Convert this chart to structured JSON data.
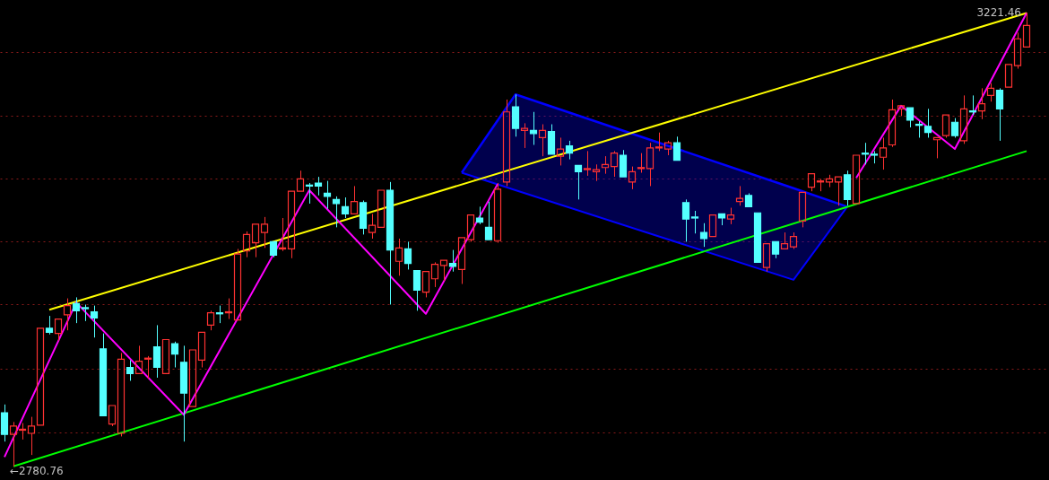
{
  "chart_data": {
    "type": "candlestick",
    "categories": [
      null,
      null,
      null,
      null,
      null,
      null,
      null,
      null,
      null,
      null,
      null,
      null,
      null,
      null,
      null,
      null,
      null,
      null,
      null,
      null,
      null,
      null,
      null,
      null,
      null,
      null,
      null,
      null,
      null,
      null,
      null,
      null,
      null,
      null,
      null,
      null,
      null,
      null,
      null,
      null,
      null,
      null,
      null,
      null,
      null,
      null,
      null,
      null,
      null,
      null,
      null,
      null,
      null,
      null,
      null,
      null,
      null,
      null,
      null,
      null,
      null,
      null,
      null,
      null,
      null,
      null,
      null,
      null,
      null,
      null,
      null,
      null,
      null,
      null,
      null,
      null,
      null,
      null,
      null,
      null,
      null,
      null,
      null,
      null,
      null,
      null,
      null,
      null,
      null,
      null,
      null,
      null,
      null,
      null,
      null,
      null,
      null,
      null,
      null,
      null,
      null,
      null,
      null,
      null,
      null,
      null,
      null,
      null,
      null,
      null,
      null,
      null,
      null,
      null,
      null
    ],
    "ohlc": [
      [
        2833,
        2841,
        2805,
        2812
      ],
      [
        2812,
        2824,
        2780.76,
        2820
      ],
      [
        2816,
        2823,
        2807,
        2817
      ],
      [
        2813,
        2829,
        2792,
        2820
      ],
      [
        2821,
        2915,
        2821,
        2915
      ],
      [
        2915,
        2927,
        2909,
        2911
      ],
      [
        2910,
        2925,
        2903,
        2924
      ],
      [
        2928,
        2944,
        2913,
        2937
      ],
      [
        2939,
        2945,
        2920,
        2932
      ],
      [
        2935,
        2938,
        2922,
        2934
      ],
      [
        2931,
        2937,
        2906,
        2925
      ],
      [
        2895,
        2910,
        2830,
        2830
      ],
      [
        2822,
        2841,
        2820,
        2840
      ],
      [
        2813,
        2891,
        2810,
        2885
      ],
      [
        2877,
        2884,
        2864,
        2871
      ],
      [
        2871,
        2898,
        2870,
        2883
      ],
      [
        2885,
        2888,
        2866,
        2886
      ],
      [
        2897,
        2918,
        2867,
        2877
      ],
      [
        2871,
        2905,
        2870,
        2904
      ],
      [
        2900,
        2902,
        2877,
        2890
      ],
      [
        2882,
        2898,
        2805,
        2852
      ],
      [
        2839,
        2894,
        2839,
        2894
      ],
      [
        2884,
        2911,
        2877,
        2911
      ],
      [
        2918,
        2932,
        2913,
        2930
      ],
      [
        2930,
        2937,
        2920,
        2929
      ],
      [
        2930,
        2944,
        2924,
        2931
      ],
      [
        2923,
        2992,
        2923,
        2987
      ],
      [
        2990,
        3009,
        2984,
        3006
      ],
      [
        2998,
        3017,
        2984,
        3016
      ],
      [
        3008,
        3023,
        2993,
        3016
      ],
      [
        2999,
        2999,
        2984,
        2986
      ],
      [
        2992,
        3022,
        2990,
        2993
      ],
      [
        2992,
        3049,
        2983,
        3048
      ],
      [
        3048,
        3068,
        3048,
        3060
      ],
      [
        3054,
        3056,
        3036,
        3053
      ],
      [
        3056,
        3062,
        3044,
        3053
      ],
      [
        3046,
        3058,
        3031,
        3043
      ],
      [
        3040,
        3043,
        3013,
        3036
      ],
      [
        3033,
        3042,
        3022,
        3026
      ],
      [
        3026,
        3053,
        3026,
        3038
      ],
      [
        3037,
        3039,
        3006,
        3012
      ],
      [
        3008,
        3026,
        3002,
        3015
      ],
      [
        3013,
        3050,
        3013,
        3049
      ],
      [
        3049,
        3057,
        2938,
        2991
      ],
      [
        2980,
        3002,
        2966,
        2993
      ],
      [
        2992,
        2999,
        2972,
        2978
      ],
      [
        2971,
        2972,
        2932,
        2952
      ],
      [
        2950,
        2970,
        2945,
        2970
      ],
      [
        2963,
        2979,
        2955,
        2977
      ],
      [
        2976,
        2981,
        2961,
        2981
      ],
      [
        2978,
        2991,
        2970,
        2975
      ],
      [
        2972,
        3003,
        2958,
        3003
      ],
      [
        3001,
        3025,
        2999,
        3025
      ],
      [
        3022,
        3033,
        3016,
        3018
      ],
      [
        3013,
        3038,
        3000,
        3001
      ],
      [
        3000,
        3056,
        2998,
        3050
      ],
      [
        3057,
        3137,
        3053,
        3125
      ],
      [
        3130,
        3142,
        3101,
        3109
      ],
      [
        3107,
        3114,
        3090,
        3109
      ],
      [
        3107,
        3125,
        3093,
        3104
      ],
      [
        3100,
        3113,
        3082,
        3107
      ],
      [
        3106,
        3113,
        3083,
        3084
      ],
      [
        3082,
        3100,
        3073,
        3089
      ],
      [
        3092,
        3097,
        3079,
        3085
      ],
      [
        3073,
        3073,
        3040,
        3067
      ],
      [
        3069,
        3087,
        3063,
        3070
      ],
      [
        3067,
        3074,
        3058,
        3069
      ],
      [
        3071,
        3082,
        3065,
        3074
      ],
      [
        3072,
        3087,
        3062,
        3085
      ],
      [
        3083,
        3088,
        3062,
        3062
      ],
      [
        3057,
        3072,
        3050,
        3067
      ],
      [
        3070,
        3085,
        3066,
        3071
      ],
      [
        3070,
        3095,
        3053,
        3090
      ],
      [
        3090,
        3105,
        3087,
        3091
      ],
      [
        3089,
        3097,
        3083,
        3095
      ],
      [
        3095,
        3101,
        3078,
        3078
      ],
      [
        3037,
        3040,
        2999,
        3021
      ],
      [
        3023,
        3029,
        3007,
        3022
      ],
      [
        3008,
        3017,
        2994,
        3002
      ],
      [
        3004,
        3026,
        3004,
        3025
      ],
      [
        3026,
        3026,
        3015,
        3022
      ],
      [
        3021,
        3032,
        3016,
        3025
      ],
      [
        3038,
        3053,
        3034,
        3041
      ],
      [
        3044,
        3046,
        3032,
        3033
      ],
      [
        3027,
        3027,
        2979,
        2979
      ],
      [
        2974,
        2997,
        2970,
        2997
      ],
      [
        2999,
        2999,
        2983,
        2987
      ],
      [
        2992,
        3008,
        2992,
        2997
      ],
      [
        2994,
        3008,
        2992,
        3004
      ],
      [
        3019,
        3047,
        3013,
        3047
      ],
      [
        3052,
        3066,
        3048,
        3065
      ],
      [
        3057,
        3060,
        3048,
        3058
      ],
      [
        3057,
        3064,
        3052,
        3060
      ],
      [
        3057,
        3063,
        3034,
        3062
      ],
      [
        3064,
        3068,
        3034,
        3040
      ],
      [
        3036,
        3084,
        3036,
        3083
      ],
      [
        3085,
        3095,
        3074,
        3084
      ],
      [
        3084,
        3087,
        3075,
        3083
      ],
      [
        3081,
        3100,
        3069,
        3090
      ],
      [
        3093,
        3137,
        3091,
        3127
      ],
      [
        3128,
        3131,
        3121,
        3131
      ],
      [
        3129,
        3129,
        3110,
        3117
      ],
      [
        3113,
        3116,
        3100,
        3112
      ],
      [
        3111,
        3128,
        3100,
        3105
      ],
      [
        3098,
        3101,
        3080,
        3100
      ],
      [
        3102,
        3122,
        3100,
        3122
      ],
      [
        3115,
        3119,
        3100,
        3102
      ],
      [
        3097,
        3141,
        3094,
        3128
      ],
      [
        3126,
        3141,
        3122,
        3125
      ],
      [
        3126,
        3148,
        3118,
        3133
      ],
      [
        3141,
        3153,
        3135,
        3148
      ],
      [
        3146,
        3148,
        3097,
        3128
      ],
      [
        3149,
        3172,
        3149,
        3171
      ],
      [
        3170,
        3202,
        3167,
        3196
      ],
      [
        3188,
        3221.46,
        3188,
        3209
      ]
    ],
    "colors": [
      "#54ffff",
      "#ff3232",
      "#ff3232",
      "#ff3232",
      "#ff3232",
      "#54ffff",
      "#ff3232",
      "#ff3232",
      "#54ffff",
      "#54ffff",
      "#54ffff",
      "#54ffff",
      "#ff3232",
      "#ff3232",
      "#54ffff",
      "#ff3232",
      "#ff3232",
      "#54ffff",
      "#ff3232",
      "#54ffff",
      "#54ffff",
      "#ff3232",
      "#ff3232",
      "#ff3232",
      "#54ffff",
      "#ff3232",
      "#ff3232",
      "#ff3232",
      "#ff3232",
      "#ff3232",
      "#54ffff",
      "#ff3232",
      "#ff3232",
      "#ff3232",
      "#54ffff",
      "#54ffff",
      "#54ffff",
      "#54ffff",
      "#54ffff",
      "#ff3232",
      "#54ffff",
      "#ff3232",
      "#ff3232",
      "#54ffff",
      "#ff3232",
      "#54ffff",
      "#54ffff",
      "#ff3232",
      "#ff3232",
      "#ff3232",
      "#54ffff",
      "#ff3232",
      "#ff3232",
      "#54ffff",
      "#54ffff",
      "#ff3232",
      "#ff3232",
      "#54ffff",
      "#ff3232",
      "#54ffff",
      "#ff3232",
      "#54ffff",
      "#ff3232",
      "#54ffff",
      "#54ffff",
      "#ff3232",
      "#ff3232",
      "#ff3232",
      "#ff3232",
      "#54ffff",
      "#ff3232",
      "#ff3232",
      "#ff3232",
      "#ff3232",
      "#ff3232",
      "#54ffff",
      "#54ffff",
      "#54ffff",
      "#54ffff",
      "#ff3232",
      "#54ffff",
      "#ff3232",
      "#ff3232",
      "#54ffff",
      "#54ffff",
      "#ff3232",
      "#54ffff",
      "#ff3232",
      "#ff3232",
      "#ff3232",
      "#ff3232",
      "#ff3232",
      "#ff3232",
      "#ff3232",
      "#54ffff",
      "#ff3232",
      "#54ffff",
      "#54ffff",
      "#ff3232",
      "#ff3232",
      "#ff3232",
      "#54ffff",
      "#54ffff",
      "#54ffff",
      "#ff3232",
      "#ff3232",
      "#54ffff",
      "#ff3232",
      "#54ffff",
      "#ff3232",
      "#ff3232",
      "#54ffff",
      "#ff3232",
      "#ff3232",
      "#ff3232"
    ],
    "series": [
      {
        "type": "area",
        "color": "#0000ff",
        "values": [
          null,
          null,
          null,
          null,
          null,
          null,
          null,
          null,
          null,
          null,
          null,
          null,
          null,
          null,
          null,
          null,
          null,
          null,
          null,
          null,
          null,
          null,
          null,
          null,
          null,
          null,
          null,
          null,
          null,
          null,
          null,
          null,
          null,
          null,
          null,
          null,
          null,
          null,
          null,
          null,
          null,
          null,
          null,
          null,
          null,
          null,
          null,
          null,
          null,
          null,
          null,
          3066,
          null,
          null,
          null,
          null,
          null,
          3142,
          null,
          null,
          null,
          null,
          null,
          null,
          null,
          null,
          null,
          null,
          null,
          null,
          null,
          null,
          null,
          null,
          null,
          null,
          null,
          null,
          null,
          null,
          null,
          null,
          null,
          null,
          null,
          null,
          null,
          null,
          3051,
          null,
          null,
          null,
          null,
          null,
          3033,
          null,
          null,
          null,
          null,
          null,
          null,
          null,
          null,
          null,
          null,
          null,
          null,
          null,
          null,
          null,
          null,
          null,
          null,
          null,
          null
        ]
      },
      {
        "type": "line",
        "color": "#0000ff",
        "values": [
          null,
          null,
          null,
          null,
          null,
          null,
          null,
          null,
          null,
          null,
          null,
          null,
          null,
          null,
          null,
          null,
          null,
          null,
          null,
          null,
          null,
          null,
          null,
          null,
          null,
          null,
          null,
          null,
          null,
          null,
          null,
          null,
          null,
          null,
          null,
          null,
          null,
          null,
          null,
          null,
          null,
          null,
          null,
          null,
          null,
          null,
          null,
          null,
          null,
          null,
          null,
          3066,
          null,
          null,
          null,
          null,
          null,
          3049,
          null,
          null,
          null,
          null,
          null,
          null,
          null,
          null,
          null,
          null,
          null,
          null,
          null,
          null,
          null,
          null,
          null,
          null,
          null,
          null,
          null,
          null,
          null,
          null,
          null,
          null,
          null,
          null,
          null,
          null,
          2962,
          null,
          null,
          null,
          null,
          null,
          3033,
          null,
          null,
          null,
          null,
          null,
          null,
          null,
          null,
          null,
          null,
          null,
          null,
          null,
          null,
          null,
          null,
          null,
          null,
          null,
          null
        ]
      },
      {
        "type": "line",
        "color": "#ffff00",
        "values": [
          null,
          null,
          null,
          null,
          null,
          2933,
          null,
          null,
          null,
          null,
          null,
          null,
          null,
          null,
          null,
          null,
          null,
          null,
          null,
          null,
          null,
          null,
          null,
          null,
          null,
          null,
          null,
          null,
          null,
          null,
          null,
          null,
          null,
          null,
          null,
          null,
          null,
          null,
          null,
          null,
          null,
          null,
          null,
          null,
          null,
          null,
          null,
          null,
          null,
          null,
          null,
          null,
          null,
          null,
          null,
          null,
          null,
          null,
          null,
          null,
          null,
          null,
          null,
          null,
          null,
          null,
          null,
          null,
          null,
          null,
          null,
          null,
          null,
          null,
          null,
          null,
          null,
          null,
          null,
          null,
          null,
          null,
          null,
          null,
          null,
          null,
          null,
          null,
          null,
          null,
          null,
          null,
          null,
          null,
          null,
          null,
          null,
          null,
          null,
          null,
          null,
          null,
          null,
          null,
          null,
          null,
          null,
          null,
          null,
          null,
          null,
          null,
          null,
          null,
          3221
        ]
      },
      {
        "type": "line",
        "color": "#00ff00",
        "values": [
          null,
          2781,
          null,
          null,
          null,
          null,
          null,
          null,
          null,
          null,
          null,
          null,
          null,
          null,
          null,
          null,
          null,
          null,
          null,
          null,
          null,
          null,
          null,
          null,
          null,
          null,
          null,
          null,
          null,
          null,
          null,
          null,
          null,
          null,
          null,
          null,
          null,
          null,
          null,
          null,
          null,
          null,
          null,
          null,
          null,
          null,
          null,
          null,
          null,
          null,
          null,
          null,
          null,
          null,
          null,
          null,
          null,
          null,
          null,
          null,
          null,
          null,
          null,
          null,
          null,
          null,
          null,
          null,
          null,
          null,
          null,
          null,
          null,
          null,
          null,
          null,
          null,
          null,
          null,
          null,
          null,
          null,
          null,
          null,
          null,
          null,
          null,
          null,
          null,
          null,
          null,
          null,
          null,
          null,
          null,
          null,
          null,
          null,
          null,
          null,
          null,
          null,
          null,
          null,
          null,
          null,
          null,
          null,
          null,
          null,
          null,
          null,
          null,
          null,
          3087
        ]
      },
      {
        "type": "line",
        "color": "#ff00ff",
        "values": [
          2790,
          null,
          null,
          null,
          null,
          null,
          null,
          null,
          2940,
          null,
          null,
          null,
          null,
          null,
          null,
          null,
          null,
          null,
          null,
          null,
          2831,
          null,
          null,
          null,
          null,
          null,
          null,
          null,
          null,
          null,
          null,
          null,
          null,
          null,
          3049,
          null,
          null,
          null,
          null,
          null,
          null,
          null,
          null,
          null,
          null,
          null,
          null,
          2929,
          null,
          null,
          null,
          null,
          null,
          null,
          null,
          3055,
          null,
          null,
          null,
          null,
          null,
          null,
          null,
          null,
          null,
          null,
          null,
          null,
          null,
          null,
          null,
          null,
          null,
          null,
          null,
          null,
          null,
          null,
          null,
          null,
          null,
          null,
          null,
          null,
          null,
          null,
          null,
          null,
          null,
          null,
          null,
          null,
          null,
          null,
          null,
          null,
          null,
          null,
          null,
          null,
          null,
          null,
          null,
          null,
          null,
          null,
          null,
          null,
          null,
          null,
          null,
          null,
          null,
          null,
          null
        ]
      },
      {
        "type": "line",
        "color": "#ff00ff",
        "values": [
          null,
          null,
          null,
          null,
          null,
          null,
          null,
          null,
          null,
          null,
          null,
          null,
          null,
          null,
          null,
          null,
          null,
          null,
          null,
          null,
          null,
          null,
          null,
          null,
          null,
          null,
          null,
          null,
          null,
          null,
          null,
          null,
          null,
          null,
          null,
          null,
          null,
          null,
          null,
          null,
          null,
          null,
          null,
          null,
          null,
          null,
          null,
          null,
          null,
          null,
          null,
          null,
          null,
          null,
          null,
          null,
          null,
          null,
          null,
          null,
          null,
          null,
          null,
          null,
          null,
          null,
          null,
          null,
          null,
          null,
          null,
          null,
          null,
          null,
          null,
          null,
          null,
          null,
          null,
          null,
          null,
          null,
          null,
          null,
          null,
          null,
          null,
          null,
          null,
          null,
          null,
          null,
          null,
          null,
          null,
          3061,
          null,
          null,
          null,
          null,
          3131,
          null,
          null,
          null,
          null,
          null,
          3089,
          null,
          null,
          null,
          null,
          null,
          null,
          null,
          3221
        ]
      }
    ],
    "yticks": [
      {
        "value": 2814,
        "label": null
      },
      {
        "value": 2876,
        "label": null
      },
      {
        "value": 2938,
        "label": null
      },
      {
        "value": 2999,
        "label": null
      },
      {
        "value": 3060,
        "label": null
      },
      {
        "value": 3121,
        "label": null
      },
      {
        "value": 3183,
        "label": null
      }
    ],
    "grid": "y",
    "annotations": [
      "3221.46",
      "←2780.76"
    ]
  }
}
